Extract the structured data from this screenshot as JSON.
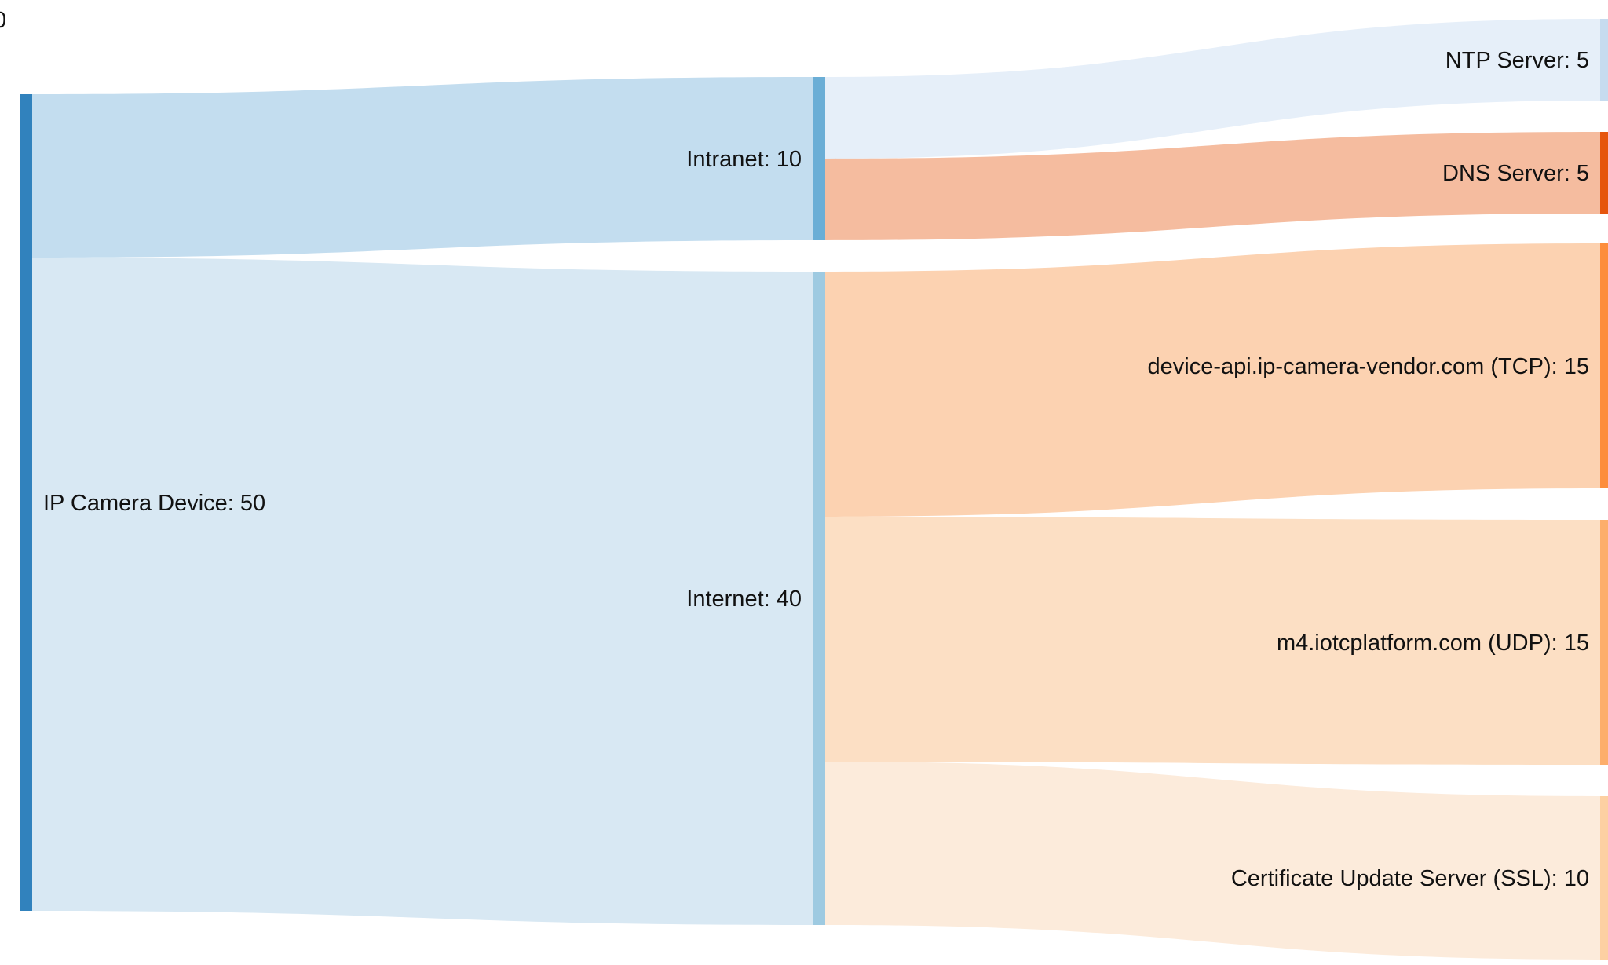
{
  "corner_text": "0",
  "nodes": [
    {
      "id": "camera",
      "label": "IP Camera Device: 50",
      "value": 50,
      "color": "#3182bd"
    },
    {
      "id": "intranet",
      "label": "Intranet: 10",
      "value": 10,
      "color": "#6baed6"
    },
    {
      "id": "internet",
      "label": "Internet: 40",
      "value": 40,
      "color": "#9ecae1"
    },
    {
      "id": "ntp",
      "label": "NTP Server: 5",
      "value": 5,
      "color": "#c6dbef"
    },
    {
      "id": "dns",
      "label": "DNS Server: 5",
      "value": 5,
      "color": "#e6550d"
    },
    {
      "id": "deviceapi",
      "label": "device-api.ip-camera-vendor.com (TCP): 15",
      "value": 15,
      "color": "#fd8d3c"
    },
    {
      "id": "m4",
      "label": "m4.iotcplatform.com (UDP): 15",
      "value": 15,
      "color": "#fdae6b"
    },
    {
      "id": "cert",
      "label": "Certificate Update Server (SSL): 10",
      "value": 10,
      "color": "#fdd0a2"
    }
  ],
  "links": [
    {
      "source": "camera",
      "target": "intranet",
      "value": 10,
      "color": "#c3ddef"
    },
    {
      "source": "camera",
      "target": "internet",
      "value": 40,
      "color": "#d8e8f3"
    },
    {
      "source": "intranet",
      "target": "ntp",
      "value": 5,
      "color": "#e6eff9"
    },
    {
      "source": "intranet",
      "target": "dns",
      "value": 5,
      "color": "#f5bc9f"
    },
    {
      "source": "internet",
      "target": "deviceapi",
      "value": 15,
      "color": "#fcd2b1"
    },
    {
      "source": "internet",
      "target": "m4",
      "value": 15,
      "color": "#fcdfc4"
    },
    {
      "source": "internet",
      "target": "cert",
      "value": 10,
      "color": "#fcebdb"
    }
  ]
}
